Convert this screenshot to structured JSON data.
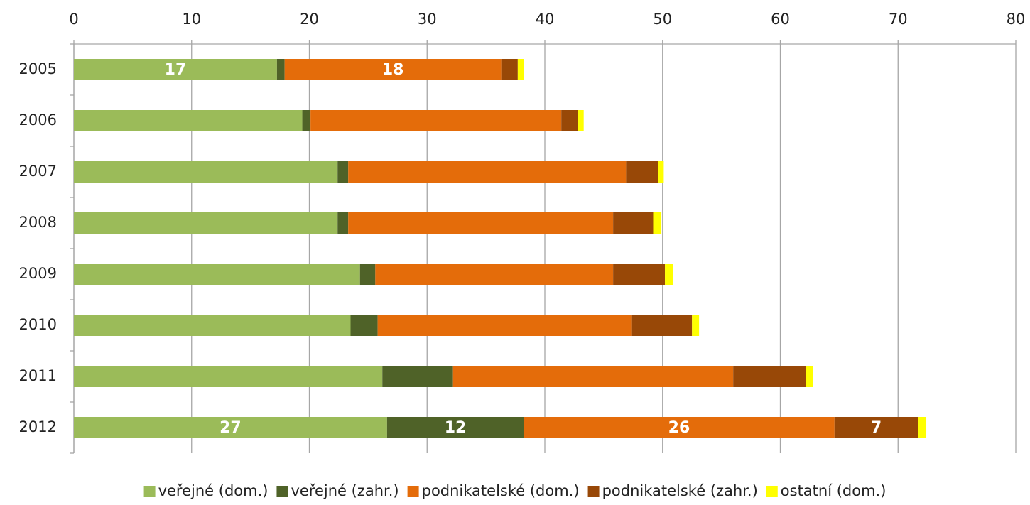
{
  "chart_data": {
    "type": "stacked_bar_horizontal",
    "categories": [
      "2005",
      "2006",
      "2007",
      "2008",
      "2009",
      "2010",
      "2011",
      "2012"
    ],
    "series": [
      {
        "name": "veřejné (dom.)",
        "color": "#9bbb59",
        "values": [
          17.25,
          19.4,
          22.4,
          22.4,
          24.3,
          23.5,
          26.2,
          26.6
        ],
        "value_labels": [
          "17",
          null,
          null,
          null,
          null,
          null,
          null,
          "27"
        ]
      },
      {
        "name": "veřejné (zahr.)",
        "color": "#4f6228",
        "values": [
          0.65,
          0.7,
          0.9,
          0.9,
          1.3,
          2.3,
          6.0,
          11.6
        ],
        "value_labels": [
          null,
          null,
          null,
          null,
          null,
          null,
          null,
          "12"
        ]
      },
      {
        "name": "podnikatelské (dom.)",
        "color": "#e46c0a",
        "values": [
          18.4,
          21.3,
          23.6,
          22.5,
          20.2,
          21.6,
          23.8,
          26.4
        ],
        "value_labels": [
          "18",
          null,
          null,
          null,
          null,
          null,
          null,
          "26"
        ]
      },
      {
        "name": "podnikatelské (zahr.)",
        "color": "#984807",
        "values": [
          1.4,
          1.4,
          2.7,
          3.4,
          4.4,
          5.1,
          6.2,
          7.1
        ],
        "value_labels": [
          null,
          null,
          null,
          null,
          null,
          null,
          null,
          "7"
        ]
      },
      {
        "name": "ostatní (dom.)",
        "color": "#ffff00",
        "values": [
          0.5,
          0.5,
          0.5,
          0.7,
          0.7,
          0.6,
          0.6,
          0.7
        ]
      }
    ],
    "xlim": [
      0,
      80
    ],
    "xticks": [
      0,
      10,
      20,
      30,
      40,
      50,
      60,
      70,
      80
    ],
    "grid": true,
    "legend": "bottom"
  }
}
